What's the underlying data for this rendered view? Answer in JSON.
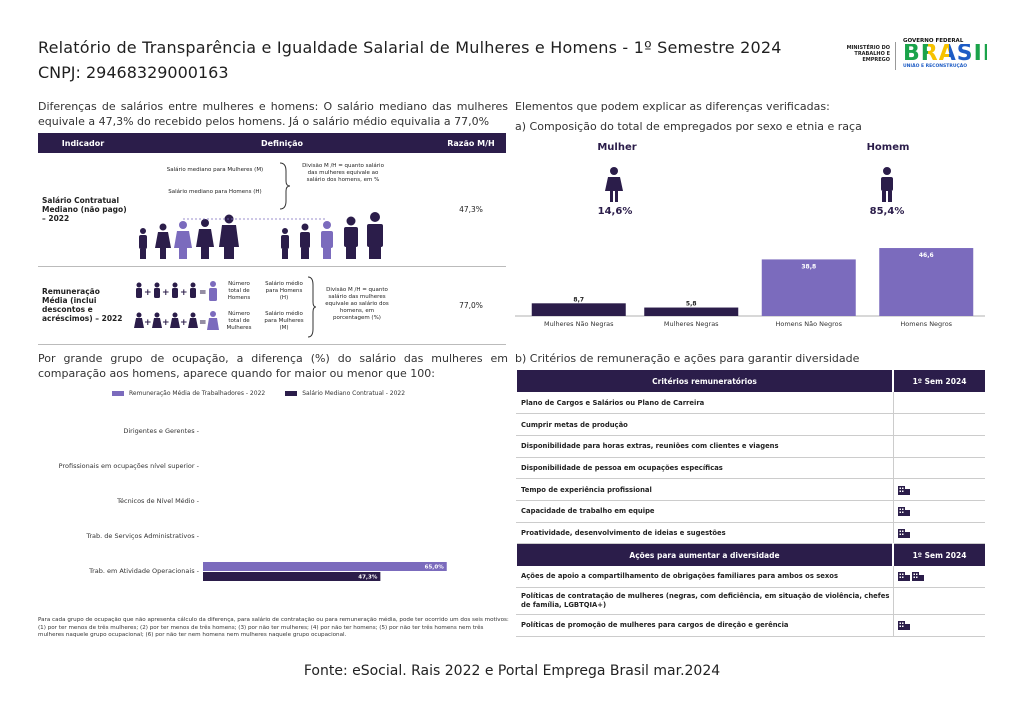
{
  "header": {
    "title": "Relatório de Transparência e Igualdade Salarial de Mulheres e Homens - 1º Semestre 2024",
    "cnpj": "CNPJ: 29468329000163",
    "ministry": "MINISTÉRIO DO TRABALHO E EMPREGO",
    "logo_top": "GOVERNO FEDERAL",
    "logo_main": "BRASIL",
    "logo_bottom": "UNIÃO E RECONSTRUÇÃO"
  },
  "left": {
    "intro": "Diferenças de salários entre mulheres e homens: O salário mediano das mulheres equivale a 47,3% do recebido pelos homens. Já o salário médio equivalia a 77,0%",
    "table": {
      "headers": [
        "Indicador",
        "Definição",
        "Razão M/H"
      ],
      "row1": {
        "indicator": "Salário Contratual Mediano (não pago) – 2022",
        "def_a": "Salário mediano para Mulheres (M)",
        "def_b": "Salário mediano para Homens (H)",
        "def_c": "Divisão M /H = quanto salário das mulheres equivale ao salário dos homens, em %",
        "ratio": "47,3%"
      },
      "row2": {
        "indicator": "Remuneração Média (inclui descontos e acréscimos) – 2022",
        "tot_h": "Número total de Homens",
        "tot_m": "Número total de Mulheres",
        "avg_h": "Salário médio para Homens (H)",
        "avg_m": "Salário médio para Mulheres (M)",
        "division": "Divisão M /H = quanto salário das mulheres equivale ao salário dos homens, em porcentagem (%)",
        "ratio": "77,0%"
      }
    },
    "occ_title": "Por grande grupo de ocupação, a diferença (%) do salário das mulheres em comparação aos homens, aparece quando for maior ou menor que 100:",
    "occ_footnote": "Para cada grupo de ocupação que não apresenta cálculo da diferença, para salário de contratação ou para remuneração média, pode ter ocorrido um dos seis motivos:(1) por ter menos de três mulheres; (2) por ter menos de três homens; (3) por não ter mulheres; (4) por não ter homens; (5) por não ter três homens nem três mulheres naquele grupo ocupacional; (6) por não ter nem homens nem mulheres naquele grupo ocupacional."
  },
  "chart_data": [
    {
      "type": "bar",
      "orientation": "horizontal",
      "categories": [
        "Dirigentes e Gerentes",
        "Profissionais em ocupações nível superior",
        "Técnicos de Nível Médio",
        "Trab. de Serviços Administrativos",
        "Trab. em Atividade Operacionais"
      ],
      "series": [
        {
          "name": "Remuneração Média de Trabalhadores - 2022",
          "values": [
            null,
            null,
            null,
            null,
            65.0
          ],
          "labels": [
            "",
            "",
            "",
            "",
            "65,0%"
          ]
        },
        {
          "name": "Salário Mediano Contratual - 2022",
          "values": [
            null,
            null,
            null,
            null,
            47.3
          ],
          "labels": [
            "",
            "",
            "",
            "",
            "47,3%"
          ]
        }
      ],
      "colors": [
        "#7b6bbd",
        "#2b1d4a"
      ],
      "legend": "top"
    },
    {
      "type": "bar",
      "categories": [
        "Mulheres Não Negras",
        "Mulheres Negras",
        "Homens Não Negros",
        "Homens Negros"
      ],
      "values": [
        8.7,
        5.8,
        38.8,
        46.6
      ],
      "labels": [
        "8,7",
        "5,8",
        "38,8",
        "46,6"
      ],
      "colors": [
        "#2b1d4a",
        "#2b1d4a",
        "#7b6bbd",
        "#7b6bbd"
      ]
    }
  ],
  "right": {
    "title": "Elementos que podem explicar as diferenças verificadas:",
    "sub_a": "a) Composição do total de empregados por sexo e etnia e raça",
    "women_label": "Mulher",
    "women_pct": "14,6%",
    "men_label": "Homem",
    "men_pct": "85,4%",
    "sub_b": "b) Critérios de remuneração e ações para garantir diversidade",
    "criteria_header": [
      "Critérios remuneratórios",
      "1º Sem 2024"
    ],
    "criteria": [
      {
        "label": "Plano de Cargos e Salários ou Plano de Carreira",
        "icons": 0
      },
      {
        "label": "Cumprir metas de produção",
        "icons": 0
      },
      {
        "label": "Disponibilidade para horas extras, reuniões com clientes e viagens",
        "icons": 0
      },
      {
        "label": "Disponibilidade de pessoa em ocupações específicas",
        "icons": 0
      },
      {
        "label": "Tempo de experiência profissional",
        "icons": 1
      },
      {
        "label": "Capacidade de trabalho em equipe",
        "icons": 1
      },
      {
        "label": "Proatividade, desenvolvimento de ideias e sugestões",
        "icons": 1
      }
    ],
    "actions_header": [
      "Ações para aumentar a diversidade",
      "1º Sem 2024"
    ],
    "actions": [
      {
        "label": "Ações de apoio a compartilhamento de obrigações familiares para ambos os sexos",
        "icons": 2
      },
      {
        "label": "Políticas de contratação de mulheres (negras, com deficiência, em situação de violência, chefes de família, LGBTQIA+)",
        "icons": 0
      },
      {
        "label": "Políticas de promoção de mulheres para cargos de direção e gerência",
        "icons": 1
      }
    ]
  },
  "footer": {
    "source": "Fonte: eSocial. Rais 2022 e Portal Emprega Brasil mar.2024"
  }
}
